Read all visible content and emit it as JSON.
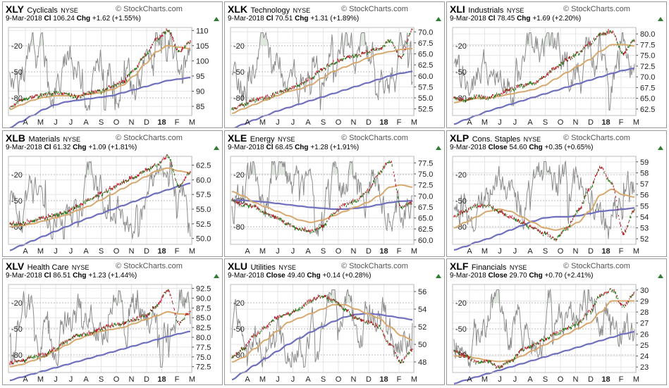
{
  "colors": {
    "up": "#2e7a1e",
    "down": "#c0192c",
    "ma50": "#d7a86e",
    "ma200": "#6f6fbd",
    "rsi_line": "#8c8c8c",
    "rsi_fill": "#dfe7df",
    "grid": "#e6e6e6",
    "border": "#9a9a9a",
    "arrow_up": "#2e7d32"
  },
  "watermark": "© StockCharts.com",
  "rsi_levels": [
    "-20",
    "-50",
    "-80"
  ],
  "month_labels": [
    "A",
    "M",
    "J",
    "J",
    "A",
    "S",
    "O",
    "N",
    "D",
    "18",
    "F",
    "M"
  ],
  "chart_data": [
    {
      "type": "line",
      "symbol": "XLY",
      "name": "Cyclicals",
      "exchange": "NYSE",
      "date": "9-Mar-2018",
      "close_label": "Cl",
      "close": "106.24",
      "chg_label": "Chg",
      "chg": "+1.62 (+1.55%)",
      "y_ticks": [
        "110",
        "105",
        "100",
        "95",
        "90",
        "85"
      ],
      "ylim": [
        82,
        111
      ],
      "price_knots": [
        84.5,
        87,
        88,
        89,
        89.5,
        89,
        88,
        89.5,
        90,
        91.5,
        93,
        97,
        102,
        107,
        110,
        103,
        106.2
      ],
      "ma50_knots": [
        84,
        85.5,
        87,
        88,
        88.5,
        88.5,
        88.5,
        89,
        89.5,
        90.5,
        92,
        95,
        99,
        103,
        105,
        104.5,
        104
      ],
      "ma200_knots": [
        78,
        80,
        82,
        84,
        85.5,
        86.5,
        87,
        87.5,
        88,
        88.5,
        89.5,
        90.5,
        91.5,
        92.5,
        93.5,
        94,
        94.5
      ]
    },
    {
      "type": "line",
      "symbol": "XLK",
      "name": "Technology",
      "exchange": "NYSE",
      "date": "9-Mar-2018",
      "close_label": "Cl",
      "close": "70.51",
      "chg_label": "Chg",
      "chg": "+1.31 (+1.89%)",
      "y_ticks": [
        "70.0",
        "67.5",
        "65.0",
        "62.5",
        "60.0",
        "57.5",
        "55.0",
        "52.5"
      ],
      "ylim": [
        51,
        71
      ],
      "price_knots": [
        52.5,
        53.5,
        54.5,
        55,
        56,
        57,
        58,
        59.5,
        61.5,
        63,
        64,
        64.5,
        65.5,
        66,
        68,
        64,
        70.5
      ],
      "ma50_knots": [
        51.5,
        52.5,
        53.5,
        54.5,
        55.5,
        56.5,
        57,
        58,
        59.5,
        61,
        62,
        63,
        64,
        65,
        65.5,
        66,
        66.2
      ],
      "ma200_knots": [
        48,
        49,
        50,
        51,
        52,
        52.8,
        53.6,
        54.4,
        55.2,
        56,
        56.8,
        57.6,
        58.4,
        59.2,
        60,
        60.6,
        61
      ]
    },
    {
      "type": "line",
      "symbol": "XLI",
      "name": "Industrials",
      "exchange": "NYSE",
      "date": "9-Mar-2018",
      "close_label": "Cl",
      "close": "78.45",
      "chg_label": "Chg",
      "chg": "+1.69 (+2.20%)",
      "y_ticks": [
        "80.0",
        "77.5",
        "75.0",
        "72.5",
        "70.0",
        "67.5",
        "65.0",
        "62.5"
      ],
      "ylim": [
        61,
        81.5
      ],
      "price_knots": [
        65,
        64.5,
        65.5,
        65,
        66,
        67,
        68,
        68.5,
        70,
        72,
        74,
        75.5,
        77.5,
        80,
        80.5,
        75.5,
        78.5
      ],
      "ma50_knots": [
        64,
        64.5,
        65,
        65,
        65.5,
        66,
        66.5,
        67,
        68,
        69.5,
        71,
        72.5,
        74,
        76,
        77.5,
        77.5,
        77.2
      ],
      "ma200_knots": [
        59,
        60,
        61,
        62,
        62.8,
        63.6,
        64.4,
        65.2,
        66,
        66.8,
        67.6,
        68.4,
        69.2,
        70,
        70.8,
        71.5,
        72
      ]
    },
    {
      "type": "line",
      "symbol": "XLB",
      "name": "Materials",
      "exchange": "NYSE",
      "date": "9-Mar-2018",
      "close_label": "Cl",
      "close": "61.32",
      "chg_label": "Chg",
      "chg": "+1.09 (+1.81%)",
      "y_ticks": [
        "62.5",
        "60.0",
        "57.5",
        "55.0",
        "52.5",
        "50.0"
      ],
      "ylim": [
        49,
        64
      ],
      "price_knots": [
        52.5,
        52.5,
        53,
        53.5,
        54,
        54.5,
        55.5,
        56.5,
        57.5,
        58.5,
        59.5,
        60.5,
        61.5,
        62.5,
        64,
        59,
        61.3
      ],
      "ma50_knots": [
        52,
        52.2,
        52.5,
        53,
        53.5,
        54,
        54.8,
        55.5,
        56.5,
        57.5,
        58.5,
        59.5,
        60.5,
        61.5,
        62,
        61.5,
        61.2
      ],
      "ma200_knots": [
        48,
        48.8,
        49.6,
        50.4,
        51.2,
        52,
        52.8,
        53.5,
        54.2,
        54.9,
        55.6,
        56.3,
        57,
        57.7,
        58.3,
        58.9,
        59.4
      ]
    },
    {
      "type": "line",
      "symbol": "XLE",
      "name": "Energy",
      "exchange": "NYSE",
      "date": "9-Mar-2018",
      "close_label": "Cl",
      "close": "68.45",
      "chg_label": "Chg",
      "chg": "+1.28 (+1.91%)",
      "y_ticks": [
        "77.5",
        "75.0",
        "72.5",
        "70.0",
        "67.5",
        "65.0",
        "62.5",
        "60.0"
      ],
      "ylim": [
        59,
        79
      ],
      "price_knots": [
        69,
        68,
        67.5,
        66,
        65,
        63.5,
        62.5,
        62,
        63,
        66,
        68,
        69,
        71,
        75,
        78,
        67.5,
        68.5
      ],
      "ma50_knots": [
        71,
        70,
        68.5,
        67.5,
        66.5,
        65.5,
        64.5,
        64,
        64.5,
        65.5,
        66.5,
        67.5,
        68.5,
        70,
        72,
        72.5,
        72
      ],
      "ma200_knots": [
        69,
        69,
        68.8,
        68.6,
        68.3,
        68,
        67.7,
        67.4,
        67.2,
        67,
        67,
        67.2,
        67.5,
        68,
        68.5,
        68.8,
        68.9
      ]
    },
    {
      "type": "line",
      "symbol": "XLP",
      "name": "Cons. Staples",
      "exchange": "NYSE",
      "date": "9-Mar-2018",
      "close_label": "Close",
      "close": "54.60",
      "chg_label": "Chg",
      "chg": "+0.35 (+0.65%)",
      "y_ticks": [
        "59",
        "58",
        "57",
        "56",
        "55",
        "54",
        "53",
        "52"
      ],
      "ylim": [
        51.5,
        59.5
      ],
      "price_knots": [
        54,
        54.5,
        55,
        55,
        54.5,
        54,
        53.5,
        53,
        52.5,
        52,
        53,
        54.5,
        56.5,
        58.5,
        57,
        52.5,
        54.6
      ],
      "ma50_knots": [
        53,
        53.5,
        54,
        54.5,
        54.7,
        54.5,
        54,
        53.5,
        53,
        52.8,
        53,
        53.5,
        54.5,
        56,
        56.5,
        56,
        55.8
      ],
      "ma200_knots": [
        51,
        51.3,
        51.7,
        52,
        52.4,
        52.8,
        53.2,
        53.6,
        53.9,
        54,
        54,
        54.1,
        54.3,
        54.5,
        54.6,
        54.7,
        54.8
      ]
    },
    {
      "type": "line",
      "symbol": "XLV",
      "name": "Health Care",
      "exchange": "NYSE",
      "date": "9-Mar-2018",
      "close_label": "Cl",
      "close": "86.51",
      "chg_label": "Chg",
      "chg": "+1.23 (+1.44%)",
      "y_ticks": [
        "92.5",
        "90.0",
        "87.5",
        "85.0",
        "82.5",
        "80.0",
        "77.5",
        "75.0",
        "72.5"
      ],
      "ylim": [
        71,
        93.5
      ],
      "price_knots": [
        73.5,
        74,
        75,
        75.5,
        77,
        79,
        80.5,
        81,
        82,
        83,
        83.5,
        84.5,
        85.5,
        88,
        92,
        83.5,
        86.5
      ],
      "ma50_knots": [
        72.5,
        73,
        74,
        75,
        76.5,
        78,
        79.5,
        80.5,
        81.5,
        82,
        82.5,
        83.5,
        84.5,
        85.5,
        86.5,
        86,
        85.8
      ],
      "ma200_knots": [
        69,
        69.8,
        70.6,
        71.4,
        72.2,
        73,
        73.8,
        74.6,
        75.4,
        76.2,
        77,
        77.8,
        78.6,
        79.4,
        80.2,
        80.9,
        81.5
      ]
    },
    {
      "type": "line",
      "symbol": "XLU",
      "name": "Utilities",
      "exchange": "NYSE",
      "date": "9-Mar-2018",
      "close_label": "Close",
      "close": "49.40",
      "chg_label": "Chg",
      "chg": "+0.14 (+0.28%)",
      "y_ticks": [
        "56",
        "54",
        "52",
        "50",
        "48"
      ],
      "ylim": [
        46.8,
        56.8
      ],
      "price_knots": [
        48.5,
        49.5,
        51,
        52,
        53,
        53.5,
        54,
        55,
        55.5,
        55,
        54,
        53,
        52.5,
        52,
        50,
        48,
        49.4
      ],
      "ma50_knots": [
        48,
        48.5,
        49.5,
        50.5,
        51.5,
        52.5,
        53,
        53.5,
        54,
        54.5,
        54.5,
        54,
        53.5,
        53,
        52,
        51,
        50.5
      ],
      "ma200_knots": [
        46,
        46.8,
        47.6,
        48.4,
        49.2,
        50,
        50.7,
        51.4,
        52,
        52.6,
        53.1,
        53.4,
        53.5,
        53.4,
        53.2,
        53,
        52.8
      ]
    },
    {
      "type": "line",
      "symbol": "XLF",
      "name": "Financials",
      "exchange": "NYSE",
      "date": "9-Mar-2018",
      "close_label": "Close",
      "close": "29.70",
      "chg_label": "Chg",
      "chg": "+0.70 (+2.41%)",
      "y_ticks": [
        "30",
        "29",
        "28",
        "27",
        "26",
        "25",
        "24",
        "23"
      ],
      "ylim": [
        22.5,
        30.5
      ],
      "price_knots": [
        24.5,
        24,
        23.5,
        23.5,
        23,
        23.5,
        24.5,
        25,
        25.5,
        26,
        26.5,
        27,
        28,
        29.5,
        30,
        28.5,
        29.7
      ],
      "ma50_knots": [
        24,
        24,
        23.8,
        23.6,
        23.5,
        23.6,
        24,
        24.5,
        25,
        25.5,
        26,
        26.5,
        27,
        28,
        29,
        29,
        29
      ],
      "ma200_knots": [
        21.5,
        21.8,
        22.1,
        22.4,
        22.7,
        23,
        23.3,
        23.6,
        23.9,
        24.2,
        24.5,
        24.8,
        25.1,
        25.4,
        25.7,
        26,
        26.2
      ]
    }
  ]
}
